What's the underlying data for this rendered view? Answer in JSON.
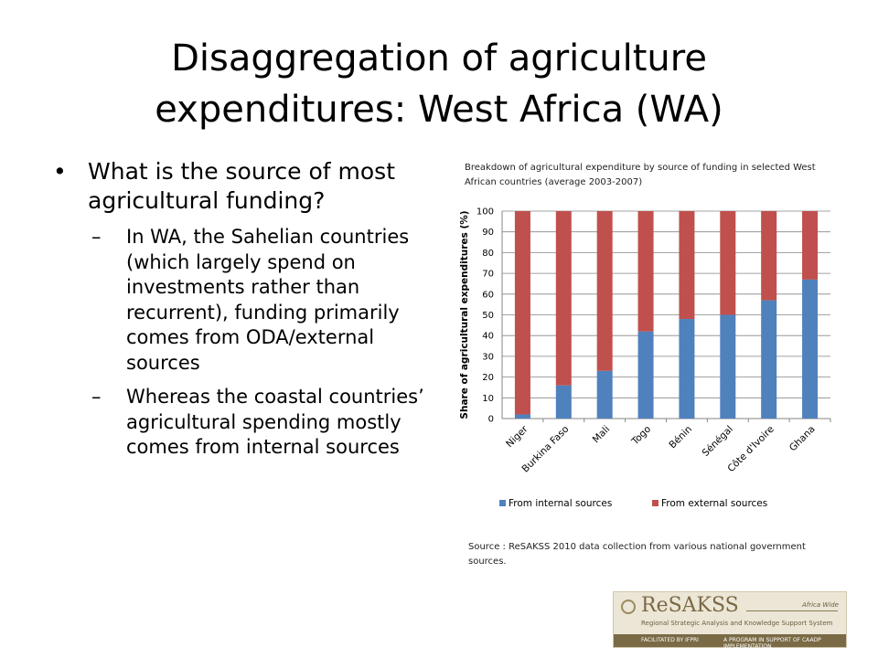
{
  "slide": {
    "title_line1": "Disaggregation of agriculture",
    "title_line2": "expenditures: West Africa (WA)",
    "bullet": "What is the source of most agricultural funding?",
    "sub_bullets": [
      "In WA, the Sahelian countries (which largely spend on investments rather than recurrent), funding primarily comes from ODA/external sources",
      "Whereas the coastal countries’ agricultural spending mostly comes from internal sources"
    ],
    "chart_caption": "Breakdown of agricultural expenditure by source of funding in selected West African countries (average 2003-2007)",
    "source": "Source : ReSAKSS 2010 data collection from various national government sources."
  },
  "logo": {
    "name": "ReSAKSS",
    "region": "Africa Wide",
    "full_name": "Regional Strategic Analysis and Knowledge Support System",
    "facilitated": "FACILITATED BY IFPRI",
    "program": "A PROGRAM IN SUPPORT OF CAADP IMPLEMENTATION"
  },
  "chart_data": {
    "type": "bar",
    "stacked": true,
    "categories": [
      "Niger",
      "Burkina Faso",
      "Mali",
      "Togo",
      "Bénin",
      "Sénégal",
      "Côte d'Ivoire",
      "Ghana"
    ],
    "series": [
      {
        "name": "From internal sources",
        "color": "#4f81bd",
        "values": [
          2,
          16,
          23,
          42,
          48,
          50,
          57,
          67
        ]
      },
      {
        "name": "From external sources",
        "color": "#c0504d",
        "values": [
          98,
          84,
          77,
          58,
          52,
          50,
          43,
          33
        ]
      }
    ],
    "ylabel": "Share of agricultural expenditures (%)",
    "xlabel": "",
    "ylim": [
      0,
      100
    ],
    "yticks": [
      0,
      10,
      20,
      30,
      40,
      50,
      60,
      70,
      80,
      90,
      100
    ],
    "grid": true,
    "legend": "bottom"
  }
}
